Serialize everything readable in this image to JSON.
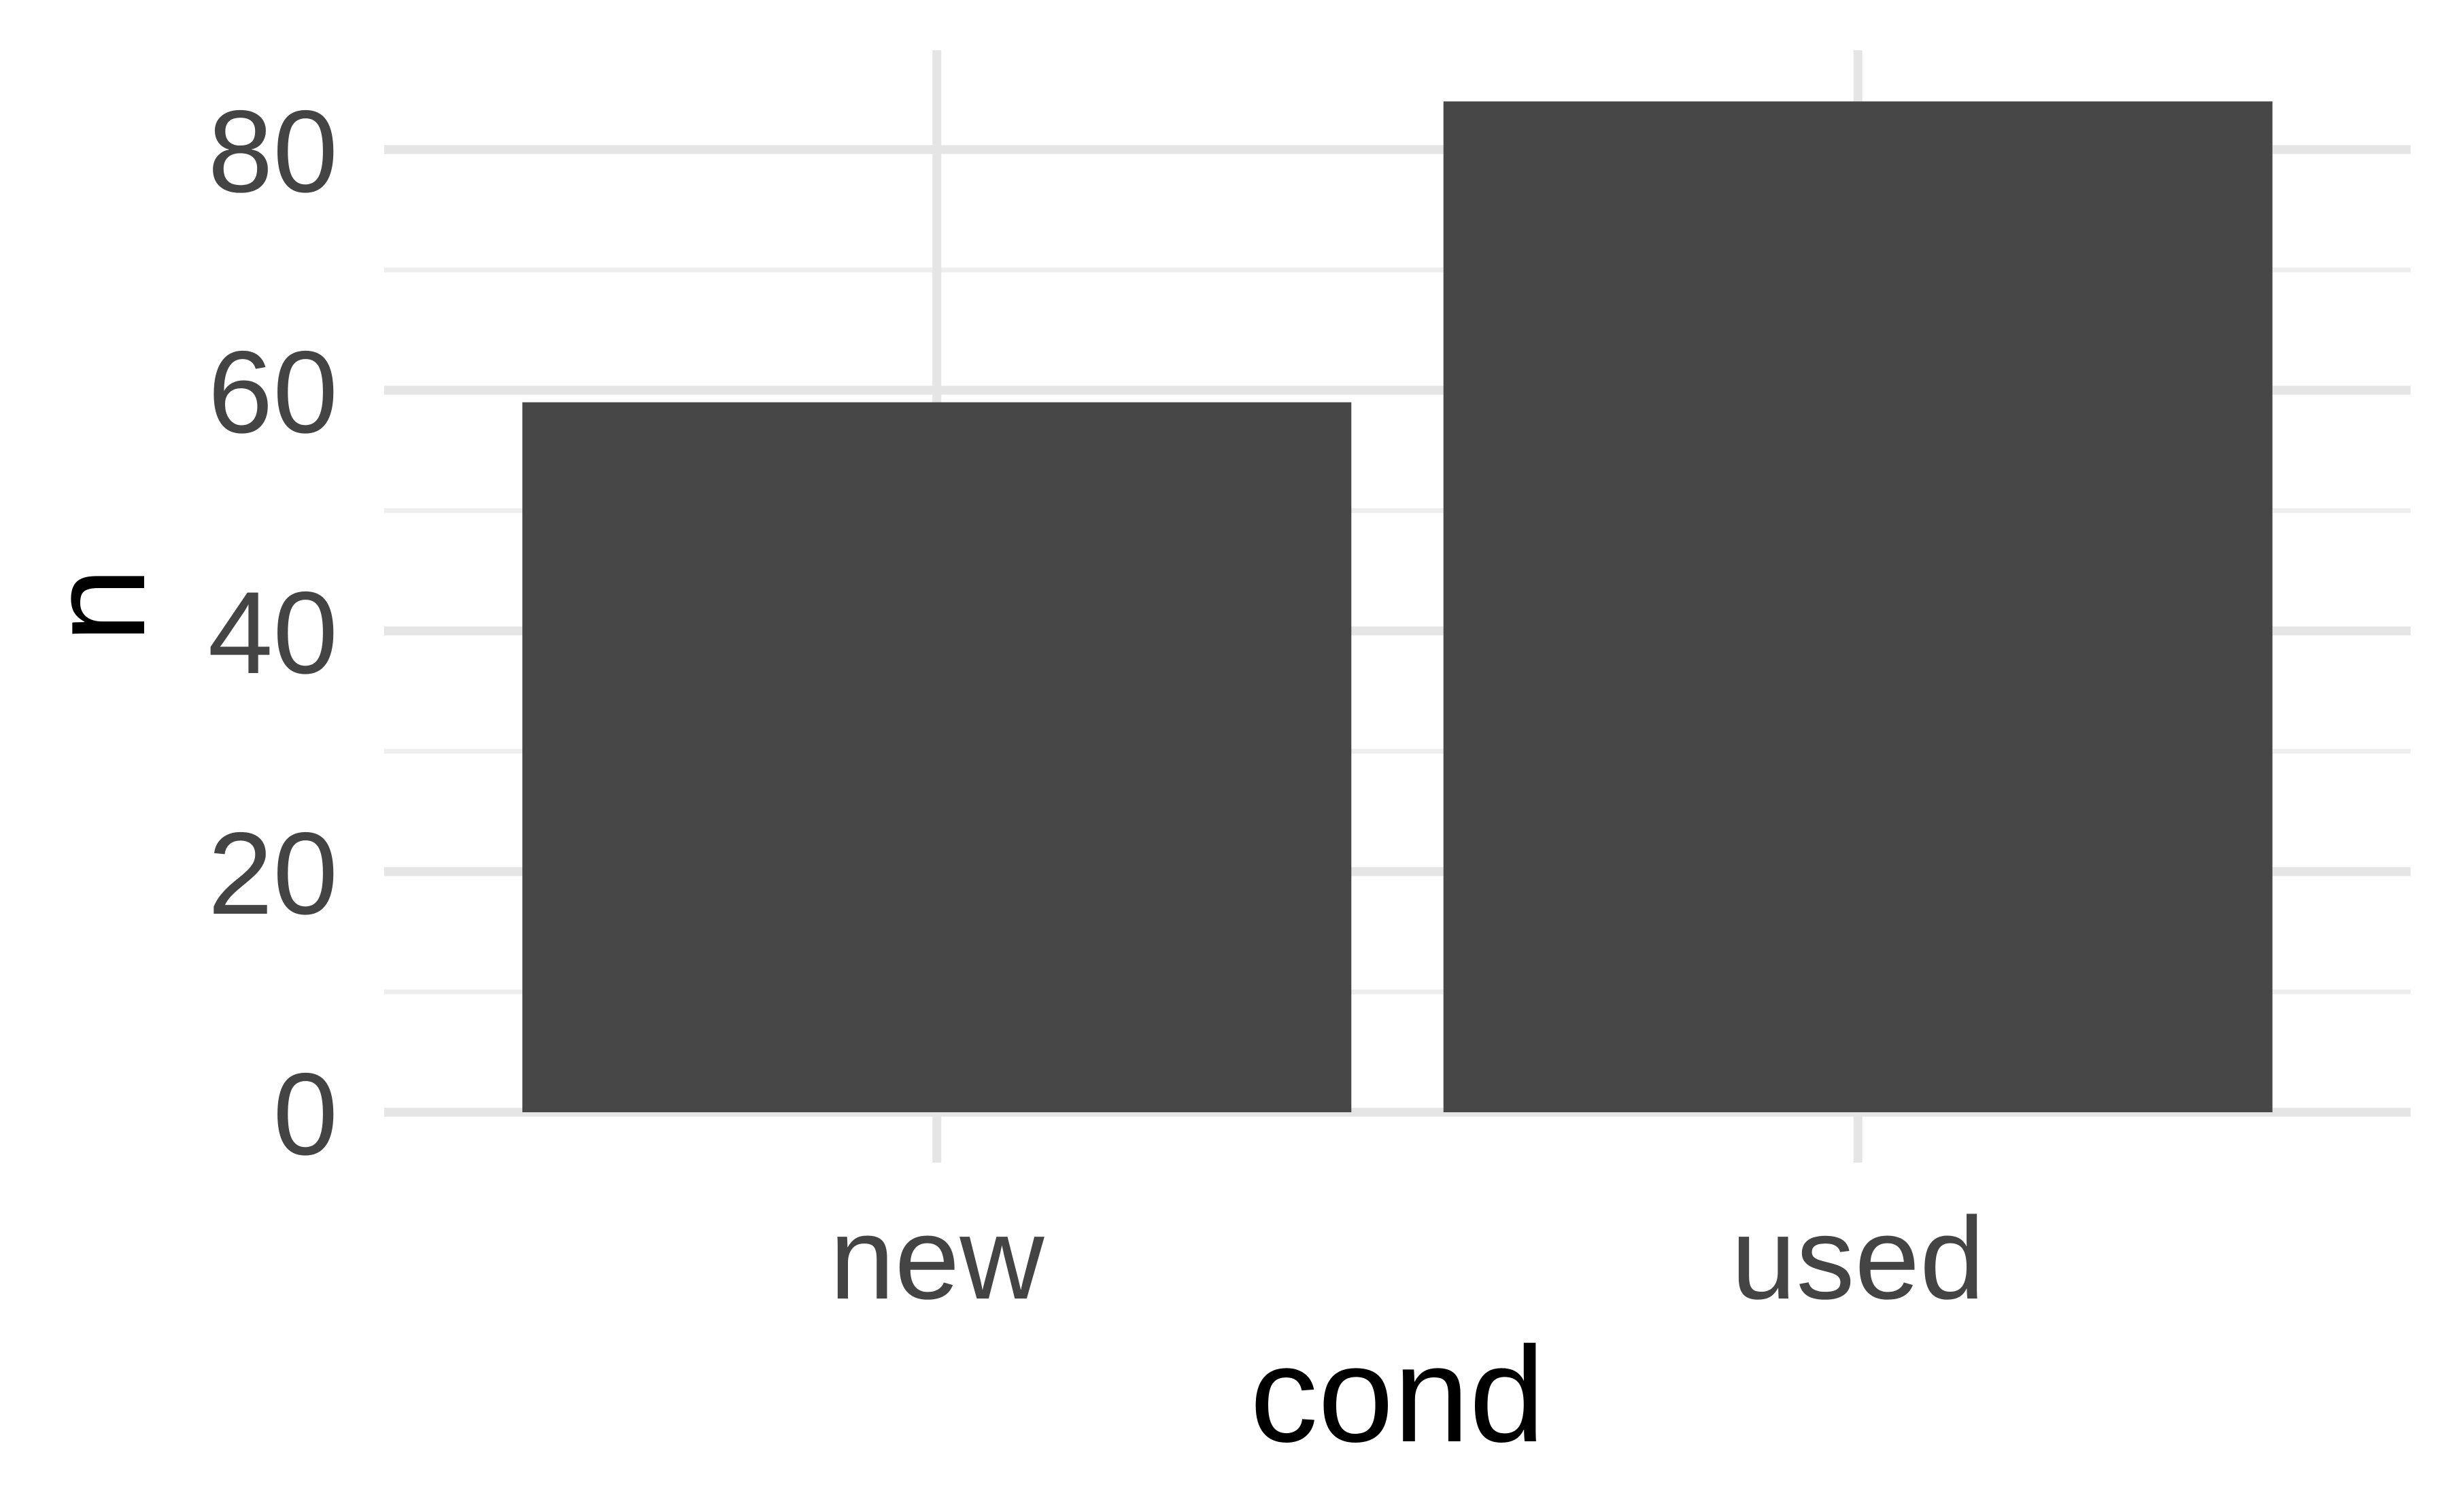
{
  "chart_data": {
    "type": "bar",
    "title": "",
    "xlabel": "cond",
    "ylabel": "n",
    "categories": [
      "new",
      "used"
    ],
    "values": [
      59,
      84
    ],
    "ylim": [
      0,
      88
    ],
    "yticks": [
      0,
      20,
      40,
      60,
      80
    ],
    "grid": true,
    "legend": "none",
    "colors": {
      "bar": "#474747",
      "grid_major": "#e5e5e5",
      "grid_minor": "#eeeeee",
      "tick_text": "#444444",
      "title_text": "#000000",
      "background": "#ffffff"
    }
  }
}
